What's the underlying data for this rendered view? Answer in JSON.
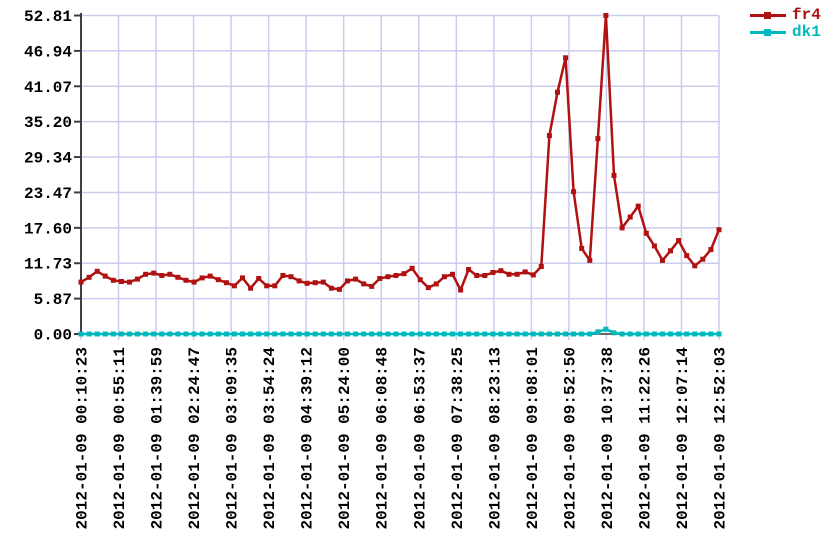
{
  "chart_data": {
    "type": "line",
    "title": "",
    "xlabel": "",
    "ylabel": "",
    "grid": true,
    "legend_position": "top-right",
    "ylim": [
      0,
      52.81
    ],
    "y_tick_labels": [
      "0.00",
      "5.87",
      "11.73",
      "17.60",
      "23.47",
      "29.34",
      "35.20",
      "41.07",
      "46.94",
      "52.81"
    ],
    "x_tick_labels": [
      "2012-01-09 00:10:23",
      "2012-01-09 00:55:11",
      "2012-01-09 01:39:59",
      "2012-01-09 02:24:47",
      "2012-01-09 03:09:35",
      "2012-01-09 03:54:24",
      "2012-01-09 04:39:12",
      "2012-01-09 05:24:00",
      "2012-01-09 06:08:48",
      "2012-01-09 06:53:37",
      "2012-01-09 07:38:25",
      "2012-01-09 08:23:13",
      "2012-01-09 09:08:01",
      "2012-01-09 09:52:50",
      "2012-01-09 10:37:38",
      "2012-01-09 11:22:26",
      "2012-01-09 12:07:14",
      "2012-01-09 12:52:03"
    ],
    "series": [
      {
        "name": "fr4",
        "color": "#b01111",
        "marker": "square",
        "values": [
          8.6,
          9.4,
          10.4,
          9.6,
          8.9,
          8.7,
          8.6,
          9.1,
          9.9,
          10.1,
          9.7,
          9.9,
          9.4,
          8.9,
          8.6,
          9.3,
          9.6,
          9.0,
          8.5,
          8.0,
          9.3,
          7.6,
          9.2,
          8.0,
          8.0,
          9.7,
          9.5,
          8.8,
          8.4,
          8.5,
          8.6,
          7.6,
          7.4,
          8.8,
          9.1,
          8.3,
          7.9,
          9.2,
          9.5,
          9.7,
          10.0,
          10.9,
          9.0,
          7.7,
          8.3,
          9.5,
          9.9,
          7.3,
          10.7,
          9.7,
          9.7,
          10.2,
          10.5,
          9.9,
          9.9,
          10.3,
          9.8,
          11.2,
          32.9,
          40.1,
          45.8,
          23.6,
          14.2,
          12.2,
          32.4,
          52.81,
          26.3,
          17.6,
          19.4,
          21.2,
          16.7,
          14.6,
          12.2,
          13.8,
          15.5,
          13.0,
          11.3,
          12.4,
          14.0,
          17.3
        ]
      },
      {
        "name": "dk1",
        "color": "#00b9bd",
        "marker": "square",
        "values": [
          0,
          0,
          0,
          0,
          0,
          0,
          0,
          0,
          0,
          0,
          0,
          0,
          0,
          0,
          0,
          0,
          0,
          0,
          0,
          0,
          0,
          0,
          0,
          0,
          0,
          0,
          0,
          0,
          0,
          0,
          0,
          0,
          0,
          0,
          0,
          0,
          0,
          0,
          0,
          0,
          0,
          0,
          0,
          0,
          0,
          0,
          0,
          0,
          0,
          0,
          0,
          0,
          0,
          0,
          0,
          0,
          0,
          0,
          0,
          0,
          0,
          0,
          0,
          0,
          0.35,
          0.8,
          0.2,
          0,
          0,
          0,
          0,
          0,
          0,
          0,
          0,
          0,
          0,
          0,
          0,
          0
        ]
      }
    ]
  },
  "colors": {
    "background": "#ffffff",
    "gridline": "#ccccee",
    "axis": "#3f3f3f",
    "tick_text": "#000000"
  }
}
